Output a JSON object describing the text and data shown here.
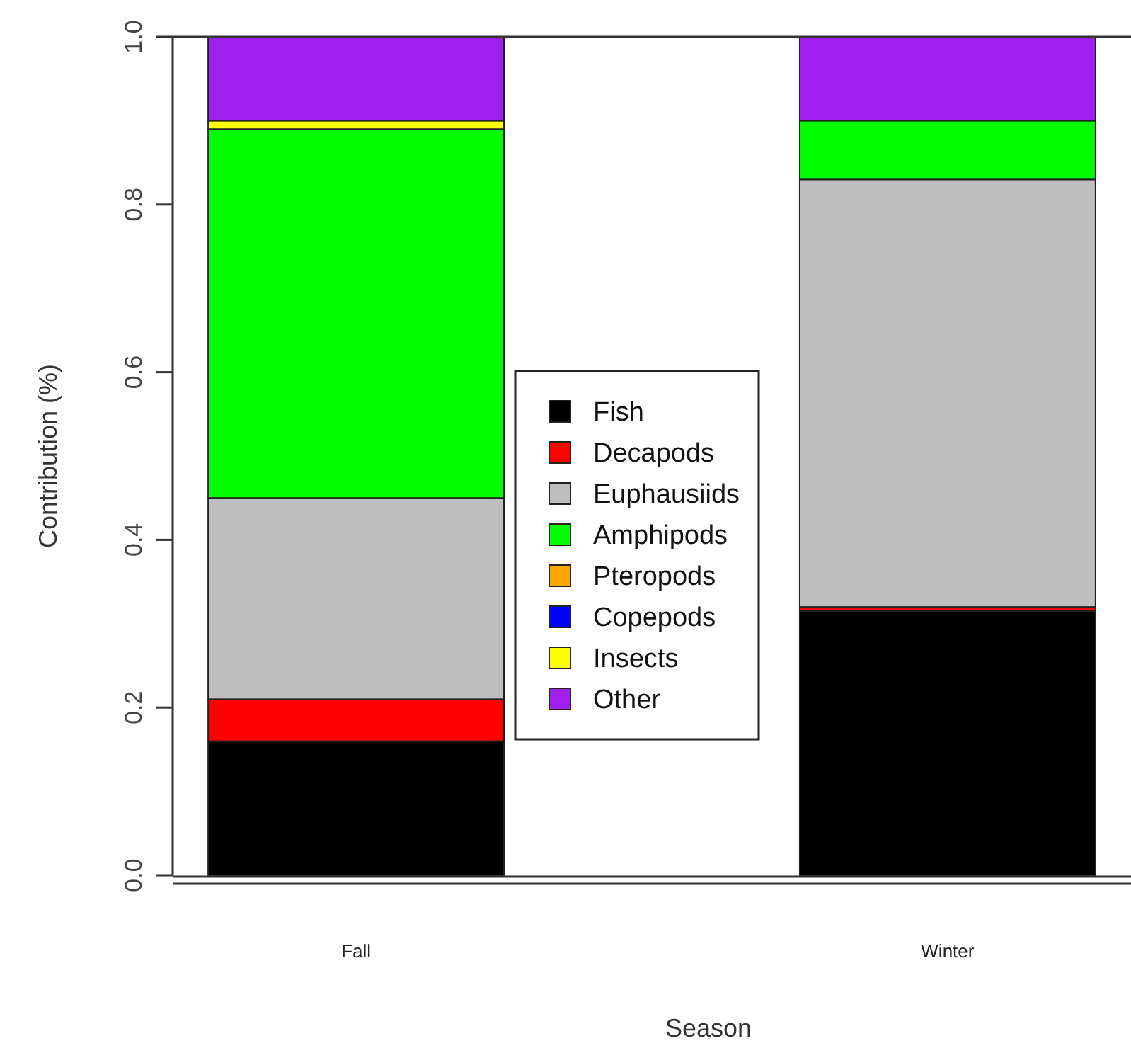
{
  "chart_data": {
    "type": "bar",
    "stacked": true,
    "xlabel": "Season",
    "ylabel": "Contribution (%)",
    "categories": [
      "Fall",
      "Winter"
    ],
    "series": [
      {
        "name": "Fish",
        "color": "#000000",
        "values": [
          0.16,
          0.315
        ]
      },
      {
        "name": "Decapods",
        "color": "#ff0000",
        "values": [
          0.05,
          0.005
        ]
      },
      {
        "name": "Euphausiids",
        "color": "#bebebe",
        "values": [
          0.24,
          0.51
        ]
      },
      {
        "name": "Amphipods",
        "color": "#00ff00",
        "values": [
          0.44,
          0.07
        ]
      },
      {
        "name": "Pteropods",
        "color": "#ffa500",
        "values": [
          0,
          0
        ]
      },
      {
        "name": "Copepods",
        "color": "#0000ff",
        "values": [
          0,
          0
        ]
      },
      {
        "name": "Insects",
        "color": "#ffff00",
        "values": [
          0.01,
          0
        ]
      },
      {
        "name": "Other",
        "color": "#a020f0",
        "values": [
          0.1,
          0.1
        ]
      }
    ],
    "ylim": [
      0,
      1
    ],
    "yticks": [
      {
        "value": 0,
        "label": "0.0"
      },
      {
        "value": 0.2,
        "label": "0.2"
      },
      {
        "value": 0.4,
        "label": "0.4"
      },
      {
        "value": 0.6,
        "label": "0.6"
      },
      {
        "value": 0.8,
        "label": "0.8"
      },
      {
        "value": 1,
        "label": "1.0"
      }
    ],
    "legend": "center",
    "grid": false
  }
}
